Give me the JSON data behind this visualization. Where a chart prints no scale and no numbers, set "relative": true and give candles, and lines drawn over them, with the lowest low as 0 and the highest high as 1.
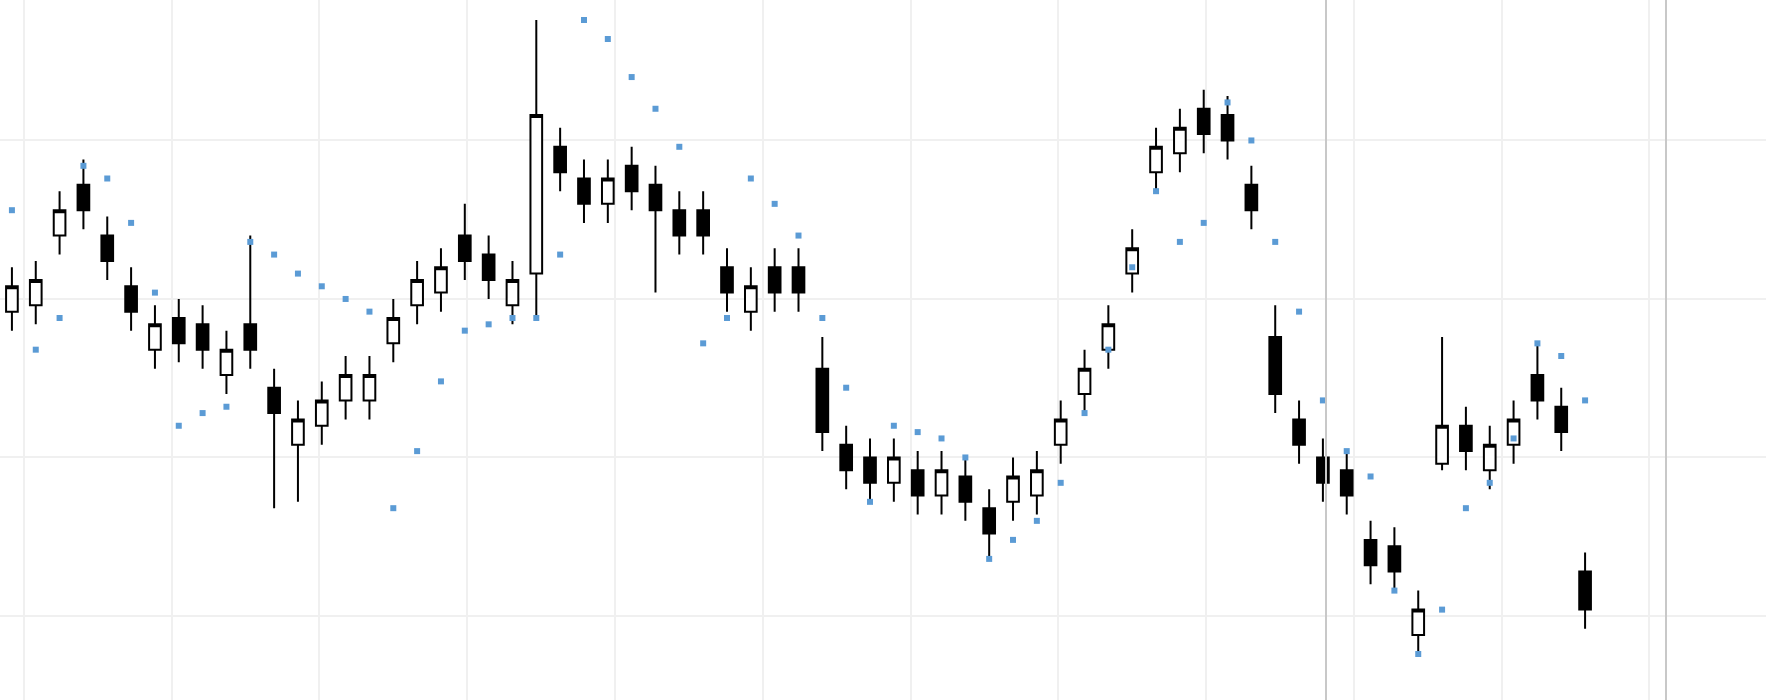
{
  "chart_data": {
    "type": "candlestick",
    "relative": true,
    "grid": true,
    "categories": [
      null,
      null,
      null,
      null,
      null,
      null,
      null,
      null,
      null,
      null,
      null,
      null,
      null,
      null,
      null,
      null,
      null,
      null,
      null,
      null,
      null,
      null,
      null,
      null,
      null,
      null,
      null,
      null,
      null,
      null,
      null,
      null,
      null,
      null,
      null,
      null,
      null,
      null,
      null,
      null,
      null,
      null,
      null,
      null,
      null,
      null,
      null,
      null,
      null,
      null,
      null,
      null,
      null,
      null,
      null,
      null,
      null,
      null,
      null,
      null,
      null,
      null,
      null,
      null,
      null,
      null,
      null
    ],
    "series": [
      {
        "color": "#000000",
        "ohlc": [
          [
            0.54,
            0.61,
            0.51,
            0.58
          ],
          [
            0.55,
            0.62,
            0.52,
            0.59
          ],
          [
            0.66,
            0.73,
            0.63,
            0.7
          ],
          [
            0.74,
            0.78,
            0.67,
            0.7
          ],
          [
            0.66,
            0.69,
            0.59,
            0.62
          ],
          [
            0.58,
            0.61,
            0.51,
            0.54
          ],
          [
            0.48,
            0.55,
            0.45,
            0.52
          ],
          [
            0.53,
            0.56,
            0.46,
            0.49
          ],
          [
            0.52,
            0.55,
            0.45,
            0.48
          ],
          [
            0.44,
            0.51,
            0.41,
            0.48
          ],
          [
            0.52,
            0.66,
            0.45,
            0.48
          ],
          [
            0.42,
            0.45,
            0.23,
            0.38
          ],
          [
            0.33,
            0.4,
            0.24,
            0.37
          ],
          [
            0.36,
            0.43,
            0.33,
            0.4
          ],
          [
            0.4,
            0.47,
            0.37,
            0.44
          ],
          [
            0.4,
            0.47,
            0.37,
            0.44
          ],
          [
            0.49,
            0.56,
            0.46,
            0.53
          ],
          [
            0.55,
            0.62,
            0.52,
            0.59
          ],
          [
            0.57,
            0.64,
            0.54,
            0.61
          ],
          [
            0.66,
            0.71,
            0.59,
            0.62
          ],
          [
            0.63,
            0.66,
            0.56,
            0.59
          ],
          [
            0.55,
            0.62,
            0.52,
            0.59
          ],
          [
            0.6,
            1.0,
            0.53,
            0.85
          ],
          [
            0.8,
            0.83,
            0.73,
            0.76
          ],
          [
            0.75,
            0.78,
            0.68,
            0.71
          ],
          [
            0.71,
            0.78,
            0.68,
            0.75
          ],
          [
            0.77,
            0.8,
            0.7,
            0.73
          ],
          [
            0.74,
            0.77,
            0.57,
            0.7
          ],
          [
            0.7,
            0.73,
            0.63,
            0.66
          ],
          [
            0.7,
            0.73,
            0.63,
            0.66
          ],
          [
            0.61,
            0.64,
            0.54,
            0.57
          ],
          [
            0.54,
            0.61,
            0.51,
            0.58
          ],
          [
            0.61,
            0.64,
            0.54,
            0.57
          ],
          [
            0.61,
            0.64,
            0.54,
            0.57
          ],
          [
            0.45,
            0.5,
            0.32,
            0.35
          ],
          [
            0.33,
            0.36,
            0.26,
            0.29
          ],
          [
            0.31,
            0.34,
            0.24,
            0.27
          ],
          [
            0.27,
            0.34,
            0.24,
            0.31
          ],
          [
            0.29,
            0.32,
            0.22,
            0.25
          ],
          [
            0.25,
            0.32,
            0.22,
            0.29
          ],
          [
            0.28,
            0.31,
            0.21,
            0.24
          ],
          [
            0.23,
            0.26,
            0.15,
            0.19
          ],
          [
            0.24,
            0.31,
            0.21,
            0.28
          ],
          [
            0.25,
            0.32,
            0.22,
            0.29
          ],
          [
            0.33,
            0.4,
            0.3,
            0.37
          ],
          [
            0.41,
            0.48,
            0.38,
            0.45
          ],
          [
            0.48,
            0.55,
            0.45,
            0.52
          ],
          [
            0.6,
            0.67,
            0.57,
            0.64
          ],
          [
            0.76,
            0.83,
            0.73,
            0.8
          ],
          [
            0.79,
            0.86,
            0.76,
            0.83
          ],
          [
            0.86,
            0.89,
            0.79,
            0.82
          ],
          [
            0.85,
            0.88,
            0.78,
            0.81
          ],
          [
            0.74,
            0.77,
            0.67,
            0.7
          ],
          [
            0.5,
            0.55,
            0.38,
            0.41
          ],
          [
            0.37,
            0.4,
            0.3,
            0.33
          ],
          [
            0.31,
            0.34,
            0.24,
            0.27
          ],
          [
            0.29,
            0.32,
            0.22,
            0.25
          ],
          [
            0.18,
            0.21,
            0.11,
            0.14
          ],
          [
            0.17,
            0.2,
            0.1,
            0.13
          ],
          [
            0.03,
            0.1,
            0.0,
            0.07
          ],
          [
            0.3,
            0.5,
            0.29,
            0.36
          ],
          [
            0.36,
            0.39,
            0.29,
            0.32
          ],
          [
            0.29,
            0.36,
            0.26,
            0.33
          ],
          [
            0.33,
            0.4,
            0.3,
            0.37
          ],
          [
            0.44,
            0.49,
            0.37,
            0.4
          ],
          [
            0.39,
            0.42,
            0.32,
            0.35
          ],
          [
            0.13,
            0.16,
            0.04,
            0.07
          ]
        ]
      },
      {
        "type": "scatter",
        "color": "#5b9bd5",
        "marker": "square",
        "values": [
          0.7,
          0.48,
          0.53,
          0.77,
          0.75,
          0.68,
          0.57,
          0.36,
          0.38,
          0.39,
          0.65,
          0.63,
          0.6,
          0.58,
          0.56,
          0.54,
          0.23,
          0.32,
          0.43,
          0.51,
          0.52,
          0.53,
          0.53,
          0.63,
          1.0,
          0.97,
          0.91,
          0.86,
          0.8,
          0.49,
          0.53,
          0.75,
          0.71,
          0.66,
          0.53,
          0.42,
          0.24,
          0.36,
          0.35,
          0.34,
          0.31,
          0.15,
          0.18,
          0.21,
          0.27,
          0.38,
          0.48,
          0.61,
          0.73,
          0.65,
          0.68,
          0.87,
          0.81,
          0.65,
          0.54,
          0.4,
          0.32,
          0.28,
          0.1,
          0.0,
          0.07,
          0.23,
          0.27,
          0.34,
          0.49,
          0.47,
          0.4
        ]
      }
    ]
  }
}
